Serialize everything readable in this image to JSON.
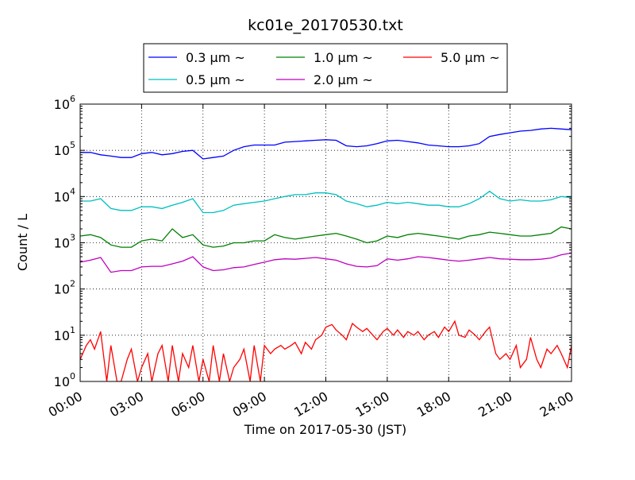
{
  "chart_data": {
    "type": "line",
    "title": "kc01e_20170530.txt",
    "xlabel": "Time on 2017-05-30 (JST)",
    "ylabel": "Count / L",
    "yscale": "log",
    "ylim": [
      1,
      1000000
    ],
    "y_ticks": [
      {
        "value": 1,
        "base": "10",
        "exp": "0"
      },
      {
        "value": 10,
        "base": "10",
        "exp": "1"
      },
      {
        "value": 100,
        "base": "10",
        "exp": "2"
      },
      {
        "value": 1000,
        "base": "10",
        "exp": "3"
      },
      {
        "value": 10000,
        "base": "10",
        "exp": "4"
      },
      {
        "value": 100000,
        "base": "10",
        "exp": "5"
      },
      {
        "value": 1000000,
        "base": "10",
        "exp": "6"
      }
    ],
    "x_ticks": [
      {
        "label": "00:00",
        "hour": 0
      },
      {
        "label": "03:00",
        "hour": 3
      },
      {
        "label": "06:00",
        "hour": 6
      },
      {
        "label": "09:00",
        "hour": 9
      },
      {
        "label": "12:00",
        "hour": 12
      },
      {
        "label": "15:00",
        "hour": 15
      },
      {
        "label": "18:00",
        "hour": 18
      },
      {
        "label": "21:00",
        "hour": 21
      },
      {
        "label": "24:00",
        "hour": 24
      }
    ],
    "xlim_hours": [
      0,
      24
    ],
    "grid": true,
    "legend": {
      "placement": "top-center",
      "columns": 3
    },
    "series": [
      {
        "name": "0.3 μm ~",
        "color": "#0000ff",
        "points": [
          [
            0,
            90000
          ],
          [
            0.5,
            90000
          ],
          [
            1,
            80000
          ],
          [
            1.5,
            75000
          ],
          [
            2,
            70000
          ],
          [
            2.5,
            70000
          ],
          [
            3,
            85000
          ],
          [
            3.5,
            90000
          ],
          [
            4,
            80000
          ],
          [
            4.5,
            85000
          ],
          [
            5,
            95000
          ],
          [
            5.5,
            100000
          ],
          [
            6,
            65000
          ],
          [
            6.5,
            70000
          ],
          [
            7,
            75000
          ],
          [
            7.5,
            100000
          ],
          [
            8,
            120000
          ],
          [
            8.5,
            130000
          ],
          [
            9,
            130000
          ],
          [
            9.5,
            130000
          ],
          [
            10,
            150000
          ],
          [
            10.5,
            155000
          ],
          [
            11,
            160000
          ],
          [
            11.5,
            165000
          ],
          [
            12,
            170000
          ],
          [
            12.5,
            165000
          ],
          [
            13,
            125000
          ],
          [
            13.5,
            120000
          ],
          [
            14,
            125000
          ],
          [
            14.5,
            140000
          ],
          [
            15,
            160000
          ],
          [
            15.5,
            165000
          ],
          [
            16,
            155000
          ],
          [
            16.5,
            145000
          ],
          [
            17,
            130000
          ],
          [
            17.5,
            125000
          ],
          [
            18,
            120000
          ],
          [
            18.5,
            120000
          ],
          [
            19,
            125000
          ],
          [
            19.5,
            140000
          ],
          [
            20,
            200000
          ],
          [
            20.5,
            220000
          ],
          [
            21,
            240000
          ],
          [
            21.5,
            260000
          ],
          [
            22,
            270000
          ],
          [
            22.5,
            290000
          ],
          [
            23,
            300000
          ],
          [
            23.5,
            290000
          ],
          [
            24,
            280000
          ]
        ]
      },
      {
        "name": "1.0 μm ~",
        "color": "#008000",
        "points": [
          [
            0,
            1400
          ],
          [
            0.5,
            1500
          ],
          [
            1,
            1300
          ],
          [
            1.5,
            900
          ],
          [
            2,
            800
          ],
          [
            2.5,
            800
          ],
          [
            3,
            1100
          ],
          [
            3.5,
            1200
          ],
          [
            4,
            1100
          ],
          [
            4.5,
            2000
          ],
          [
            5,
            1300
          ],
          [
            5.5,
            1500
          ],
          [
            6,
            900
          ],
          [
            6.5,
            800
          ],
          [
            7,
            850
          ],
          [
            7.5,
            1000
          ],
          [
            8,
            1000
          ],
          [
            8.5,
            1100
          ],
          [
            9,
            1100
          ],
          [
            9.5,
            1500
          ],
          [
            10,
            1300
          ],
          [
            10.5,
            1200
          ],
          [
            11,
            1300
          ],
          [
            11.5,
            1400
          ],
          [
            12,
            1500
          ],
          [
            12.5,
            1600
          ],
          [
            13,
            1400
          ],
          [
            13.5,
            1200
          ],
          [
            14,
            1000
          ],
          [
            14.5,
            1100
          ],
          [
            15,
            1400
          ],
          [
            15.5,
            1300
          ],
          [
            16,
            1500
          ],
          [
            16.5,
            1600
          ],
          [
            17,
            1500
          ],
          [
            17.5,
            1400
          ],
          [
            18,
            1300
          ],
          [
            18.5,
            1200
          ],
          [
            19,
            1400
          ],
          [
            19.5,
            1500
          ],
          [
            20,
            1700
          ],
          [
            20.5,
            1600
          ],
          [
            21,
            1500
          ],
          [
            21.5,
            1400
          ],
          [
            22,
            1400
          ],
          [
            22.5,
            1500
          ],
          [
            23,
            1600
          ],
          [
            23.5,
            2200
          ],
          [
            24,
            2000
          ]
        ]
      },
      {
        "name": "5.0 μm ~",
        "color": "#ff0000",
        "points": [
          [
            0,
            3
          ],
          [
            0.3,
            6
          ],
          [
            0.5,
            8
          ],
          [
            0.7,
            5
          ],
          [
            1,
            12
          ],
          [
            1.3,
            1
          ],
          [
            1.5,
            6
          ],
          [
            1.8,
            1
          ],
          [
            2,
            1
          ],
          [
            2.3,
            3
          ],
          [
            2.5,
            5
          ],
          [
            2.8,
            1
          ],
          [
            3,
            2
          ],
          [
            3.3,
            4
          ],
          [
            3.5,
            1
          ],
          [
            3.8,
            4
          ],
          [
            4,
            6
          ],
          [
            4.3,
            1
          ],
          [
            4.5,
            6
          ],
          [
            4.8,
            1
          ],
          [
            5,
            4
          ],
          [
            5.3,
            2
          ],
          [
            5.5,
            6
          ],
          [
            5.8,
            1
          ],
          [
            6,
            3
          ],
          [
            6.3,
            1
          ],
          [
            6.5,
            6
          ],
          [
            6.8,
            1
          ],
          [
            7,
            4
          ],
          [
            7.3,
            1
          ],
          [
            7.5,
            2
          ],
          [
            7.8,
            3
          ],
          [
            8,
            5
          ],
          [
            8.3,
            1
          ],
          [
            8.5,
            6
          ],
          [
            8.8,
            1
          ],
          [
            9,
            6
          ],
          [
            9.3,
            4
          ],
          [
            9.5,
            5
          ],
          [
            9.8,
            6
          ],
          [
            10,
            5
          ],
          [
            10.3,
            6
          ],
          [
            10.5,
            7
          ],
          [
            10.8,
            4
          ],
          [
            11,
            7
          ],
          [
            11.3,
            5
          ],
          [
            11.5,
            8
          ],
          [
            11.8,
            10
          ],
          [
            12,
            15
          ],
          [
            12.3,
            17
          ],
          [
            12.5,
            13
          ],
          [
            12.8,
            10
          ],
          [
            13,
            8
          ],
          [
            13.3,
            18
          ],
          [
            13.5,
            15
          ],
          [
            13.8,
            12
          ],
          [
            14,
            14
          ],
          [
            14.3,
            10
          ],
          [
            14.5,
            8
          ],
          [
            14.8,
            12
          ],
          [
            15,
            14
          ],
          [
            15.3,
            10
          ],
          [
            15.5,
            13
          ],
          [
            15.8,
            9
          ],
          [
            16,
            12
          ],
          [
            16.3,
            10
          ],
          [
            16.5,
            12
          ],
          [
            16.8,
            8
          ],
          [
            17,
            10
          ],
          [
            17.3,
            12
          ],
          [
            17.5,
            9
          ],
          [
            17.8,
            15
          ],
          [
            18,
            12
          ],
          [
            18.3,
            20
          ],
          [
            18.5,
            10
          ],
          [
            18.8,
            9
          ],
          [
            19,
            13
          ],
          [
            19.3,
            10
          ],
          [
            19.5,
            8
          ],
          [
            19.8,
            12
          ],
          [
            20,
            15
          ],
          [
            20.3,
            4
          ],
          [
            20.5,
            3
          ],
          [
            20.8,
            4
          ],
          [
            21,
            3
          ],
          [
            21.3,
            6
          ],
          [
            21.5,
            2
          ],
          [
            21.8,
            3
          ],
          [
            22,
            9
          ],
          [
            22.3,
            3
          ],
          [
            22.5,
            2
          ],
          [
            22.8,
            5
          ],
          [
            23,
            4
          ],
          [
            23.3,
            6
          ],
          [
            23.5,
            4
          ],
          [
            23.8,
            2
          ],
          [
            24,
            6
          ]
        ]
      },
      {
        "name": "0.5 μm ~",
        "color": "#00bfbf",
        "points": [
          [
            0,
            8000
          ],
          [
            0.5,
            8000
          ],
          [
            1,
            9000
          ],
          [
            1.5,
            5500
          ],
          [
            2,
            5000
          ],
          [
            2.5,
            5000
          ],
          [
            3,
            6000
          ],
          [
            3.5,
            6000
          ],
          [
            4,
            5500
          ],
          [
            4.5,
            6500
          ],
          [
            5,
            7500
          ],
          [
            5.5,
            9000
          ],
          [
            6,
            4500
          ],
          [
            6.5,
            4500
          ],
          [
            7,
            5000
          ],
          [
            7.5,
            6500
          ],
          [
            8,
            7000
          ],
          [
            8.5,
            7500
          ],
          [
            9,
            8000
          ],
          [
            9.5,
            9000
          ],
          [
            10,
            10000
          ],
          [
            10.5,
            11000
          ],
          [
            11,
            11000
          ],
          [
            11.5,
            12000
          ],
          [
            12,
            12000
          ],
          [
            12.5,
            11000
          ],
          [
            13,
            8000
          ],
          [
            13.5,
            7000
          ],
          [
            14,
            6000
          ],
          [
            14.5,
            6500
          ],
          [
            15,
            7500
          ],
          [
            15.5,
            7000
          ],
          [
            16,
            7500
          ],
          [
            16.5,
            7000
          ],
          [
            17,
            6500
          ],
          [
            17.5,
            6500
          ],
          [
            18,
            6000
          ],
          [
            18.5,
            6000
          ],
          [
            19,
            7000
          ],
          [
            19.5,
            9000
          ],
          [
            20,
            13000
          ],
          [
            20.5,
            9000
          ],
          [
            21,
            8000
          ],
          [
            21.5,
            8500
          ],
          [
            22,
            8000
          ],
          [
            22.5,
            8000
          ],
          [
            23,
            8500
          ],
          [
            23.5,
            10000
          ],
          [
            24,
            9500
          ]
        ]
      },
      {
        "name": "2.0 μm ~",
        "color": "#bf00bf",
        "points": [
          [
            0,
            380
          ],
          [
            0.5,
            420
          ],
          [
            1,
            480
          ],
          [
            1.5,
            230
          ],
          [
            2,
            250
          ],
          [
            2.5,
            250
          ],
          [
            3,
            300
          ],
          [
            3.5,
            310
          ],
          [
            4,
            310
          ],
          [
            4.5,
            350
          ],
          [
            5,
            400
          ],
          [
            5.5,
            500
          ],
          [
            6,
            300
          ],
          [
            6.5,
            250
          ],
          [
            7,
            260
          ],
          [
            7.5,
            290
          ],
          [
            8,
            300
          ],
          [
            8.5,
            340
          ],
          [
            9,
            380
          ],
          [
            9.5,
            430
          ],
          [
            10,
            450
          ],
          [
            10.5,
            440
          ],
          [
            11,
            460
          ],
          [
            11.5,
            480
          ],
          [
            12,
            450
          ],
          [
            12.5,
            420
          ],
          [
            13,
            350
          ],
          [
            13.5,
            310
          ],
          [
            14,
            300
          ],
          [
            14.5,
            320
          ],
          [
            15,
            450
          ],
          [
            15.5,
            420
          ],
          [
            16,
            450
          ],
          [
            16.5,
            500
          ],
          [
            17,
            480
          ],
          [
            17.5,
            450
          ],
          [
            18,
            420
          ],
          [
            18.5,
            400
          ],
          [
            19,
            420
          ],
          [
            19.5,
            450
          ],
          [
            20,
            480
          ],
          [
            20.5,
            450
          ],
          [
            21,
            440
          ],
          [
            21.5,
            430
          ],
          [
            22,
            430
          ],
          [
            22.5,
            440
          ],
          [
            23,
            470
          ],
          [
            23.5,
            550
          ],
          [
            24,
            600
          ]
        ]
      }
    ]
  }
}
